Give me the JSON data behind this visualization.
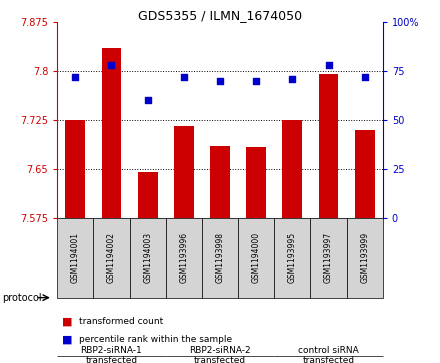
{
  "title": "GDS5355 / ILMN_1674050",
  "samples": [
    "GSM1194001",
    "GSM1194002",
    "GSM1194003",
    "GSM1193996",
    "GSM1193998",
    "GSM1194000",
    "GSM1193995",
    "GSM1193997",
    "GSM1193999"
  ],
  "bar_values": [
    7.725,
    7.835,
    7.645,
    7.715,
    7.685,
    7.683,
    7.725,
    7.795,
    7.71
  ],
  "scatter_values": [
    72,
    78,
    60,
    72,
    70,
    70,
    71,
    78,
    72
  ],
  "ylim_left": [
    7.575,
    7.875
  ],
  "ylim_right": [
    0,
    100
  ],
  "yticks_left": [
    7.575,
    7.65,
    7.725,
    7.8,
    7.875
  ],
  "yticks_right": [
    0,
    25,
    50,
    75,
    100
  ],
  "bar_color": "#cc0000",
  "scatter_color": "#0000cc",
  "left_axis_color": "#cc0000",
  "right_axis_color": "#0000cc",
  "sample_bg": "#d4d4d4",
  "group_colors": [
    "#c8f0c8",
    "#c8f0c8",
    "#44bb44"
  ],
  "group_labels": [
    "RBP2-siRNA-1\ntransfected",
    "RBP2-siRNA-2\ntransfected",
    "control siRNA\ntransfected"
  ],
  "group_ranges": [
    [
      0,
      2
    ],
    [
      3,
      5
    ],
    [
      6,
      8
    ]
  ],
  "protocol_label": "protocol",
  "legend_items": [
    {
      "color": "#cc0000",
      "label": "transformed count"
    },
    {
      "color": "#0000cc",
      "label": "percentile rank within the sample"
    }
  ]
}
